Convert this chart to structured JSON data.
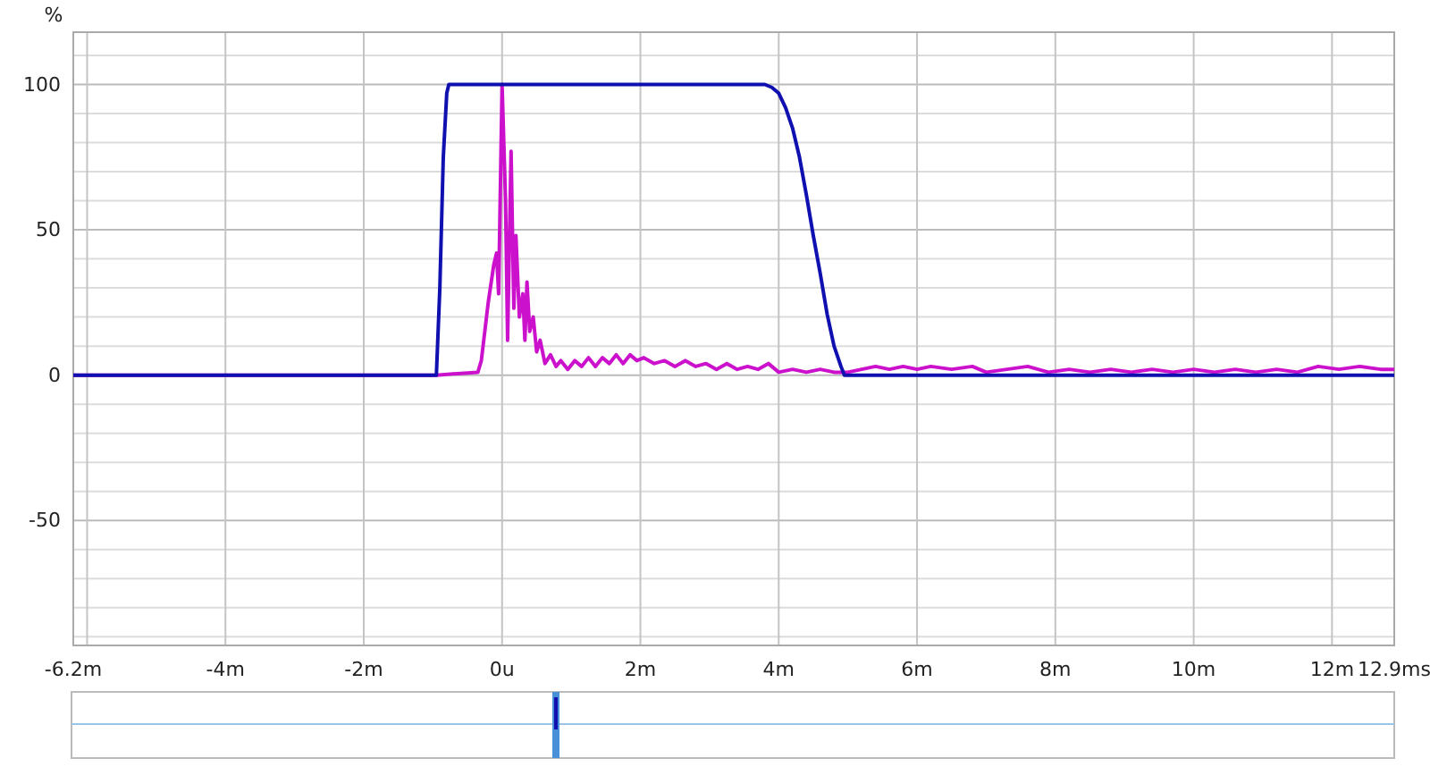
{
  "chart_data": {
    "type": "line",
    "ylabel": "%",
    "grid": true,
    "line_style": "solid",
    "marker": "none",
    "xlim": [
      -6.2,
      12.9
    ],
    "ylim": [
      -93,
      118
    ],
    "xticks": [
      {
        "value": -6.2,
        "label": "-6.2m"
      },
      {
        "value": -6,
        "label": null
      },
      {
        "value": -4,
        "label": "-4m"
      },
      {
        "value": -2,
        "label": "-2m"
      },
      {
        "value": 0,
        "label": "0u"
      },
      {
        "value": 2,
        "label": "2m"
      },
      {
        "value": 4,
        "label": "4m"
      },
      {
        "value": 6,
        "label": "6m"
      },
      {
        "value": 8,
        "label": "8m"
      },
      {
        "value": 10,
        "label": "10m"
      },
      {
        "value": 12,
        "label": "12m"
      },
      {
        "value": 12.9,
        "label": "12.9ms"
      }
    ],
    "yticks": [
      {
        "value": -90,
        "label": null
      },
      {
        "value": -80,
        "label": null
      },
      {
        "value": -70,
        "label": null
      },
      {
        "value": -60,
        "label": null
      },
      -50,
      {
        "value": -40,
        "label": null
      },
      {
        "value": -30,
        "label": null
      },
      {
        "value": -20,
        "label": null
      },
      {
        "value": -10,
        "label": null
      },
      0,
      {
        "value": 10,
        "label": null
      },
      {
        "value": 20,
        "label": null
      },
      {
        "value": 30,
        "label": null
      },
      {
        "value": 40,
        "label": null
      },
      50,
      {
        "value": 60,
        "label": null
      },
      {
        "value": 70,
        "label": null
      },
      {
        "value": 80,
        "label": null
      },
      {
        "value": 90,
        "label": null
      },
      100,
      {
        "value": 110,
        "label": null
      }
    ],
    "series": [
      {
        "color": "#cc11cc",
        "x": [
          -6.2,
          -0.95,
          -0.35,
          -0.3,
          -0.2,
          -0.12,
          -0.08,
          -0.05,
          0,
          0.05,
          0.08,
          0.13,
          0.17,
          0.2,
          0.25,
          0.3,
          0.33,
          0.36,
          0.4,
          0.45,
          0.5,
          0.55,
          0.62,
          0.7,
          0.78,
          0.85,
          0.95,
          1.05,
          1.15,
          1.25,
          1.35,
          1.45,
          1.55,
          1.65,
          1.75,
          1.85,
          1.95,
          2.05,
          2.2,
          2.35,
          2.5,
          2.65,
          2.8,
          2.95,
          3.1,
          3.25,
          3.4,
          3.55,
          3.7,
          3.85,
          4.0,
          4.2,
          4.4,
          4.6,
          4.8,
          5.0,
          5.2,
          5.4,
          5.6,
          5.8,
          6.0,
          6.2,
          6.5,
          6.8,
          7.0,
          7.3,
          7.6,
          7.9,
          8.2,
          8.5,
          8.8,
          9.1,
          9.4,
          9.7,
          10.0,
          10.3,
          10.6,
          10.9,
          11.2,
          11.5,
          11.8,
          12.1,
          12.4,
          12.7,
          12.9
        ],
        "values": [
          0,
          0,
          1,
          5,
          25,
          38,
          42,
          28,
          100,
          60,
          12,
          77,
          23,
          48,
          20,
          28,
          12,
          32,
          15,
          20,
          8,
          12,
          4,
          7,
          3,
          5,
          2,
          5,
          3,
          6,
          3,
          6,
          4,
          7,
          4,
          7,
          5,
          6,
          4,
          5,
          3,
          5,
          3,
          4,
          2,
          4,
          2,
          3,
          2,
          4,
          1,
          2,
          1,
          2,
          1,
          1,
          2,
          3,
          2,
          3,
          2,
          3,
          2,
          3,
          1,
          2,
          3,
          1,
          2,
          1,
          2,
          1,
          2,
          1,
          2,
          1,
          2,
          1,
          2,
          1,
          3,
          2,
          3,
          2,
          2
        ]
      },
      {
        "color": "#1010b0",
        "x": [
          -6.2,
          -0.95,
          -0.9,
          -0.85,
          -0.8,
          -0.77,
          3.8,
          3.9,
          4.0,
          4.1,
          4.2,
          4.3,
          4.4,
          4.5,
          4.6,
          4.7,
          4.8,
          4.9,
          4.95,
          12.9
        ],
        "values": [
          0,
          0,
          30,
          75,
          97,
          100,
          100,
          99,
          97,
          92,
          85,
          75,
          62,
          48,
          35,
          21,
          10,
          3,
          0,
          0
        ]
      }
    ]
  }
}
